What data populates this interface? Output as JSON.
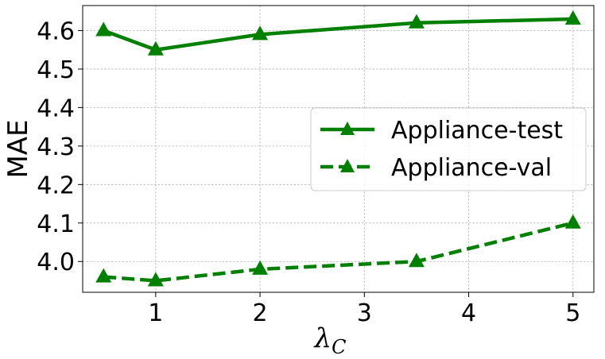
{
  "chart_data": {
    "type": "line",
    "title": "",
    "xlabel_main": "λ",
    "xlabel_sub": "C",
    "ylabel": "MAE",
    "xlim": [
      0.3,
      5.2
    ],
    "ylim": [
      3.92,
      4.665
    ],
    "x_ticks": [
      1,
      2,
      3,
      4,
      5
    ],
    "y_ticks": [
      4.0,
      4.1,
      4.2,
      4.3,
      4.4,
      4.5,
      4.6
    ],
    "x_tick_labels": [
      "1",
      "2",
      "3",
      "4",
      "5"
    ],
    "y_tick_labels": [
      "4.0",
      "4.1",
      "4.2",
      "4.3",
      "4.4",
      "4.5",
      "4.6"
    ],
    "grid": true,
    "legend_position": "center-right",
    "series": [
      {
        "name": "Appliance-test",
        "x": [
          0.5,
          1,
          2,
          3.5,
          5
        ],
        "values": [
          4.6,
          4.55,
          4.59,
          4.62,
          4.63
        ],
        "color": "#008000",
        "line_style": "solid",
        "marker": "triangle"
      },
      {
        "name": "Appliance-val",
        "x": [
          0.5,
          1,
          2,
          3.5,
          5
        ],
        "values": [
          3.96,
          3.95,
          3.98,
          4.0,
          4.1
        ],
        "color": "#008000",
        "line_style": "dashed",
        "marker": "triangle"
      }
    ]
  }
}
